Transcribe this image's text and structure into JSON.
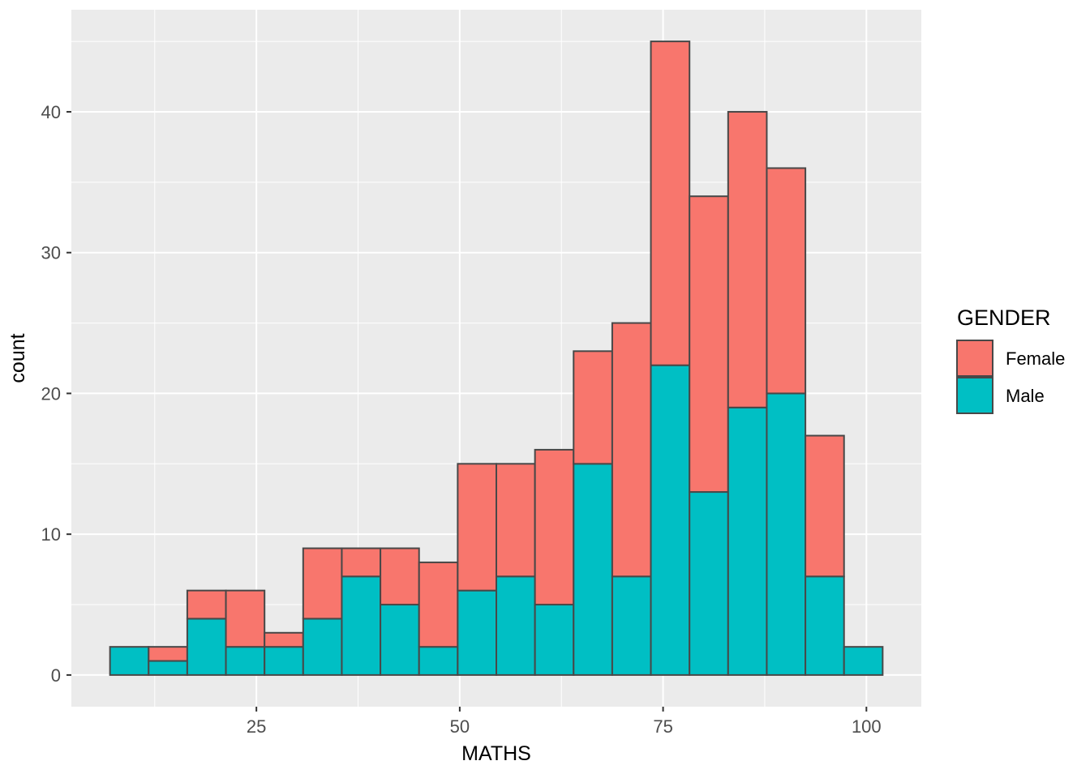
{
  "chart_data": {
    "type": "bar",
    "subtype": "stacked-histogram",
    "title": "",
    "xlabel": "MATHS",
    "ylabel": "count",
    "legend_title": "GENDER",
    "legend_position": "right",
    "bin_start": 7,
    "bin_width": 4.75,
    "x_domain": [
      2.25,
      106.75
    ],
    "y_domain": [
      -2.25,
      47.25
    ],
    "x_ticks": [
      25,
      50,
      75,
      100
    ],
    "x_minor_ticks": [
      12.5,
      37.5,
      62.5,
      87.5
    ],
    "y_ticks": [
      0,
      10,
      20,
      30,
      40
    ],
    "y_minor_ticks": [
      5,
      15,
      25,
      35,
      45
    ],
    "grid": true,
    "series": [
      {
        "name": "Male",
        "color": "#00BFC4",
        "values": [
          2,
          1,
          4,
          2,
          2,
          4,
          7,
          5,
          2,
          6,
          7,
          5,
          15,
          7,
          22,
          13,
          19,
          20,
          7,
          2
        ]
      },
      {
        "name": "Female",
        "color": "#F8766D",
        "values": [
          0,
          1,
          2,
          4,
          1,
          5,
          2,
          4,
          6,
          9,
          8,
          11,
          8,
          18,
          23,
          21,
          21,
          16,
          10,
          0
        ]
      }
    ],
    "stack_order_bottom_to_top": [
      "Male",
      "Female"
    ],
    "legend_entries": [
      {
        "label": "Female",
        "color": "#F8766D"
      },
      {
        "label": "Male",
        "color": "#00BFC4"
      }
    ],
    "totals": [
      2,
      2,
      6,
      6,
      3,
      9,
      9,
      9,
      8,
      15,
      15,
      16,
      23,
      25,
      45,
      34,
      40,
      36,
      17,
      2
    ],
    "colors": {
      "panel_background": "#EBEBEB",
      "grid_major": "#FFFFFF",
      "grid_minor": "#FFFFFF",
      "bar_border": "#484848",
      "tick_mark": "#333333",
      "tick_label": "#4D4D4D",
      "axis_title": "#000000",
      "page_background": "#FFFFFF"
    }
  }
}
